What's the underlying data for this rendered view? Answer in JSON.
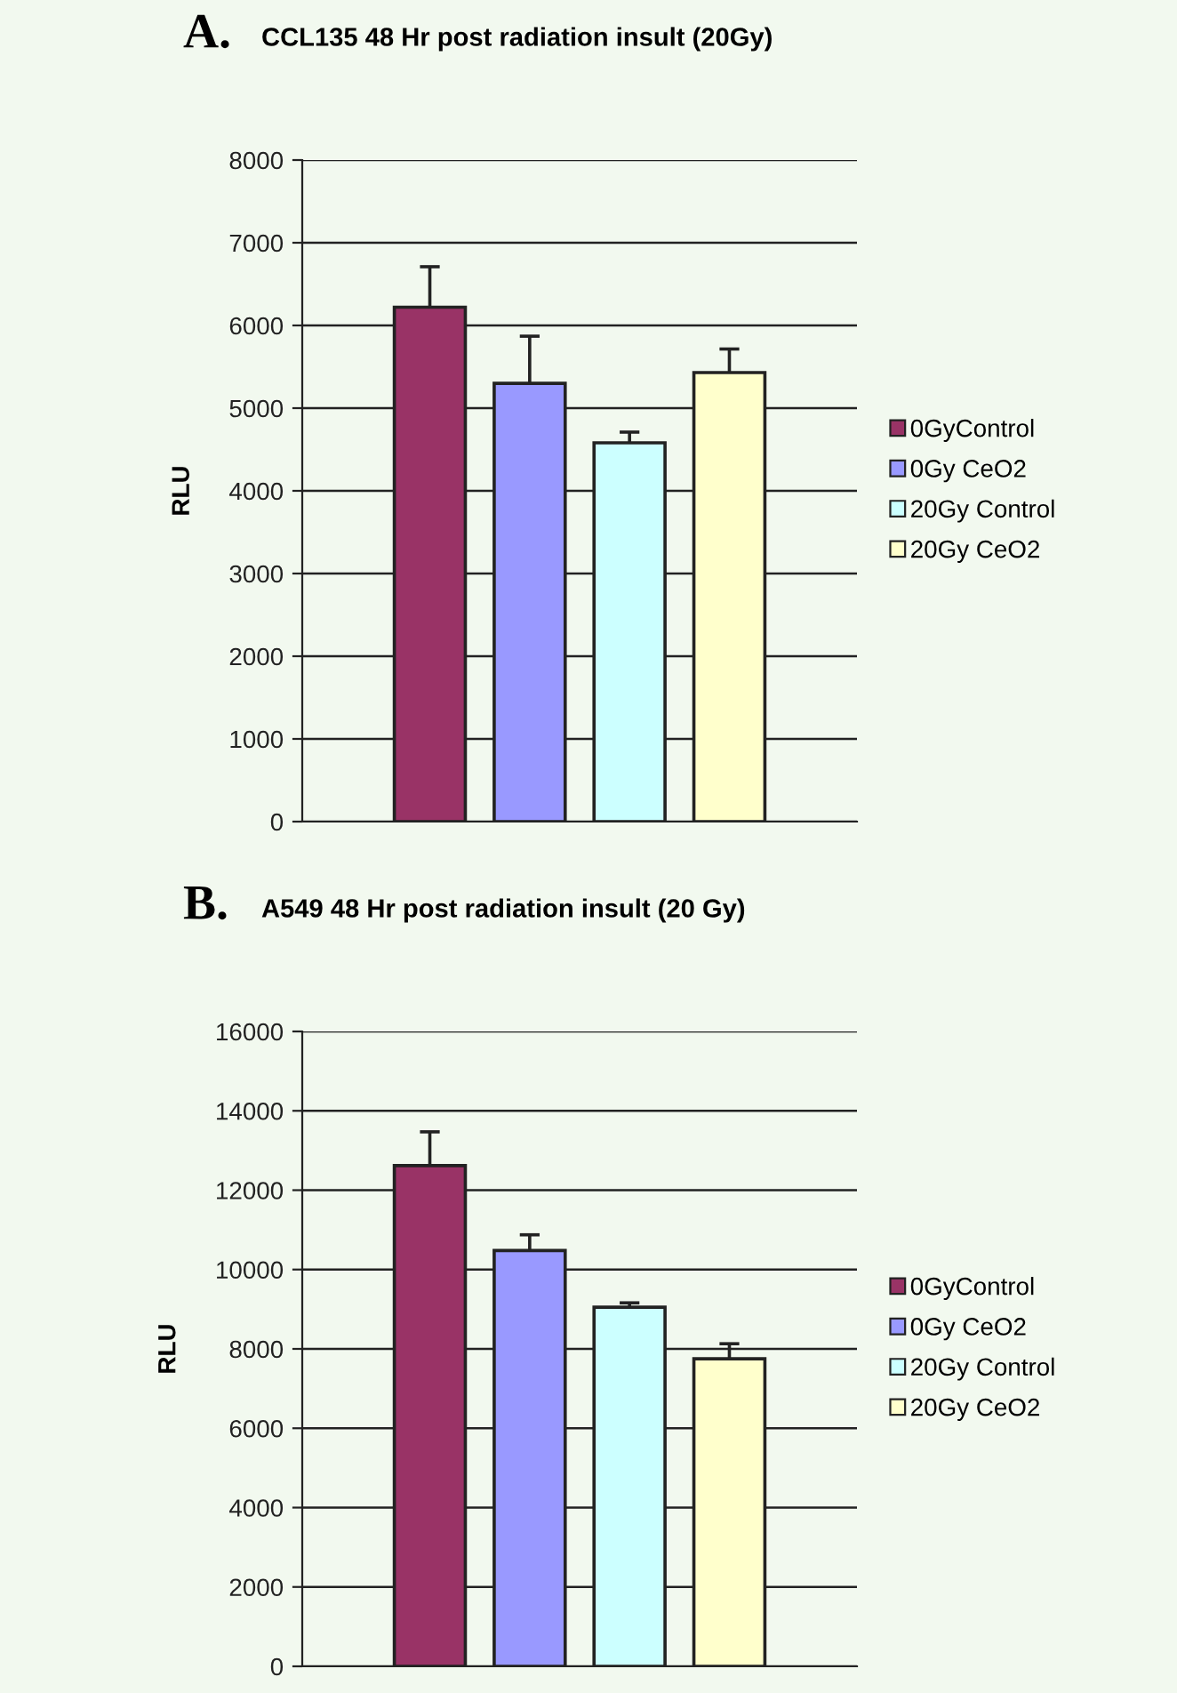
{
  "chart_data": [
    {
      "type": "bar",
      "title": "CCL135 48 Hr post radiation insult (20Gy)",
      "ylabel": "RLU",
      "annotations": [
        "A."
      ],
      "categories": [
        null
      ],
      "series": [
        {
          "name": "0GyControl",
          "color": "#993366",
          "values": [
            6220
          ],
          "errors": [
            490
          ]
        },
        {
          "name": "0Gy CeO2",
          "color": "#9999ff",
          "values": [
            5300
          ],
          "errors": [
            570
          ]
        },
        {
          "name": "20Gy Control",
          "color": "#ccffff",
          "values": [
            4580
          ],
          "errors": [
            130
          ]
        },
        {
          "name": "20Gy CeO2",
          "color": "#ffffcc",
          "values": [
            5430
          ],
          "errors": [
            285
          ]
        }
      ],
      "ylim": [
        0,
        8000
      ],
      "yticks": [
        0,
        1000,
        2000,
        3000,
        4000,
        5000,
        6000,
        7000,
        8000
      ],
      "grid": "y",
      "legend": "right"
    },
    {
      "type": "bar",
      "title": "A549 48 Hr post radiation insult (20 Gy)",
      "ylabel": "RLU",
      "annotations": [
        "B."
      ],
      "categories": [
        null
      ],
      "series": [
        {
          "name": "0GyControl",
          "color": "#993366",
          "values": [
            12620
          ],
          "errors": [
            850
          ]
        },
        {
          "name": "0Gy CeO2",
          "color": "#9999ff",
          "values": [
            10480
          ],
          "errors": [
            395
          ]
        },
        {
          "name": "20Gy Control",
          "color": "#ccffff",
          "values": [
            9050
          ],
          "errors": [
            110
          ]
        },
        {
          "name": "20Gy CeO2",
          "color": "#ffffcc",
          "values": [
            7750
          ],
          "errors": [
            380
          ]
        }
      ],
      "ylim": [
        0,
        16000
      ],
      "yticks": [
        0,
        2000,
        4000,
        6000,
        8000,
        10000,
        12000,
        14000,
        16000
      ],
      "grid": "y",
      "legend": "right"
    }
  ]
}
